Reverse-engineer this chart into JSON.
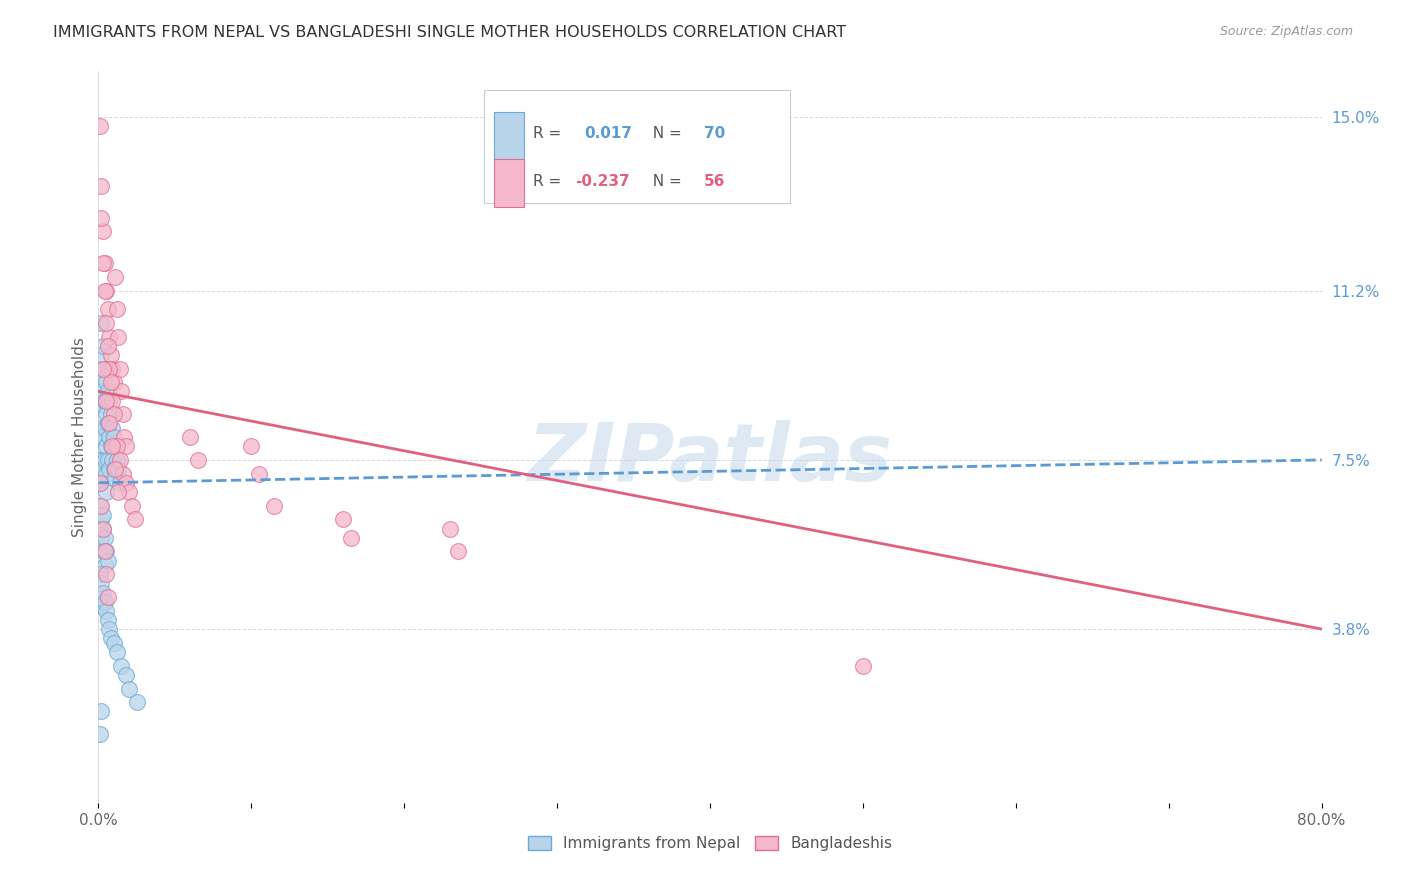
{
  "title": "IMMIGRANTS FROM NEPAL VS BANGLADESHI SINGLE MOTHER HOUSEHOLDS CORRELATION CHART",
  "source": "Source: ZipAtlas.com",
  "ylabel": "Single Mother Households",
  "series": [
    {
      "name": "Immigrants from Nepal",
      "R": 0.017,
      "N": 70,
      "color": "#b8d4ea",
      "edge_color": "#6aaad4",
      "line_color": "#5b9bd5",
      "line_style": "--",
      "trend_x0": 0.0,
      "trend_y0": 0.07,
      "trend_x1": 0.8,
      "trend_y1": 0.075,
      "x": [
        0.001,
        0.001,
        0.001,
        0.001,
        0.001,
        0.002,
        0.002,
        0.002,
        0.002,
        0.002,
        0.003,
        0.003,
        0.003,
        0.003,
        0.003,
        0.004,
        0.004,
        0.004,
        0.004,
        0.005,
        0.005,
        0.005,
        0.005,
        0.006,
        0.006,
        0.006,
        0.007,
        0.007,
        0.007,
        0.008,
        0.008,
        0.009,
        0.009,
        0.01,
        0.01,
        0.011,
        0.011,
        0.012,
        0.013,
        0.014,
        0.001,
        0.001,
        0.002,
        0.002,
        0.003,
        0.003,
        0.004,
        0.004,
        0.005,
        0.006,
        0.001,
        0.001,
        0.002,
        0.002,
        0.003,
        0.004,
        0.005,
        0.006,
        0.007,
        0.008,
        0.01,
        0.012,
        0.015,
        0.018,
        0.02,
        0.025,
        0.005,
        0.003,
        0.002,
        0.001
      ],
      "y": [
        0.095,
        0.088,
        0.08,
        0.075,
        0.07,
        0.105,
        0.098,
        0.09,
        0.082,
        0.075,
        0.1,
        0.093,
        0.087,
        0.08,
        0.073,
        0.095,
        0.088,
        0.082,
        0.075,
        0.092,
        0.085,
        0.078,
        0.072,
        0.09,
        0.083,
        0.075,
        0.088,
        0.08,
        0.073,
        0.085,
        0.078,
        0.082,
        0.075,
        0.08,
        0.073,
        0.078,
        0.071,
        0.075,
        0.073,
        0.07,
        0.065,
        0.06,
        0.062,
        0.058,
        0.06,
        0.055,
        0.058,
        0.052,
        0.055,
        0.053,
        0.05,
        0.045,
        0.048,
        0.043,
        0.046,
        0.044,
        0.042,
        0.04,
        0.038,
        0.036,
        0.035,
        0.033,
        0.03,
        0.028,
        0.025,
        0.022,
        0.068,
        0.063,
        0.02,
        0.015
      ]
    },
    {
      "name": "Bangladeshis",
      "R": -0.237,
      "N": 56,
      "color": "#f5b8cc",
      "edge_color": "#e07090",
      "line_color": "#e06080",
      "line_style": "-",
      "trend_x0": 0.0,
      "trend_y0": 0.09,
      "trend_x1": 0.8,
      "trend_y1": 0.038,
      "x": [
        0.001,
        0.002,
        0.003,
        0.004,
        0.005,
        0.006,
        0.007,
        0.008,
        0.009,
        0.01,
        0.011,
        0.012,
        0.013,
        0.014,
        0.015,
        0.016,
        0.017,
        0.018,
        0.002,
        0.003,
        0.004,
        0.005,
        0.006,
        0.007,
        0.008,
        0.009,
        0.01,
        0.012,
        0.014,
        0.016,
        0.018,
        0.02,
        0.022,
        0.024,
        0.003,
        0.005,
        0.007,
        0.009,
        0.011,
        0.013,
        0.06,
        0.065,
        0.1,
        0.105,
        0.115,
        0.16,
        0.165,
        0.23,
        0.235,
        0.5,
        0.001,
        0.002,
        0.003,
        0.004,
        0.005,
        0.006
      ],
      "y": [
        0.148,
        0.135,
        0.125,
        0.118,
        0.112,
        0.108,
        0.102,
        0.098,
        0.095,
        0.092,
        0.115,
        0.108,
        0.102,
        0.095,
        0.09,
        0.085,
        0.08,
        0.078,
        0.128,
        0.118,
        0.112,
        0.105,
        0.1,
        0.095,
        0.092,
        0.088,
        0.085,
        0.078,
        0.075,
        0.072,
        0.07,
        0.068,
        0.065,
        0.062,
        0.095,
        0.088,
        0.083,
        0.078,
        0.073,
        0.068,
        0.08,
        0.075,
        0.078,
        0.072,
        0.065,
        0.062,
        0.058,
        0.06,
        0.055,
        0.03,
        0.07,
        0.065,
        0.06,
        0.055,
        0.05,
        0.045
      ]
    }
  ],
  "xlim": [
    0.0,
    0.8
  ],
  "ylim": [
    0.0,
    0.16
  ],
  "xticks": [
    0.0,
    0.1,
    0.2,
    0.3,
    0.4,
    0.5,
    0.6,
    0.7,
    0.8
  ],
  "xticklabels": [
    "0.0%",
    "",
    "",
    "",
    "",
    "",
    "",
    "",
    "80.0%"
  ],
  "yticks_right": [
    0.038,
    0.075,
    0.112,
    0.15
  ],
  "ytick_labels_right": [
    "3.8%",
    "7.5%",
    "11.2%",
    "15.0%"
  ],
  "background_color": "#ffffff",
  "grid_color": "#d8d8d8",
  "watermark": "ZIPatlas",
  "watermark_color": "#c5d8ea"
}
